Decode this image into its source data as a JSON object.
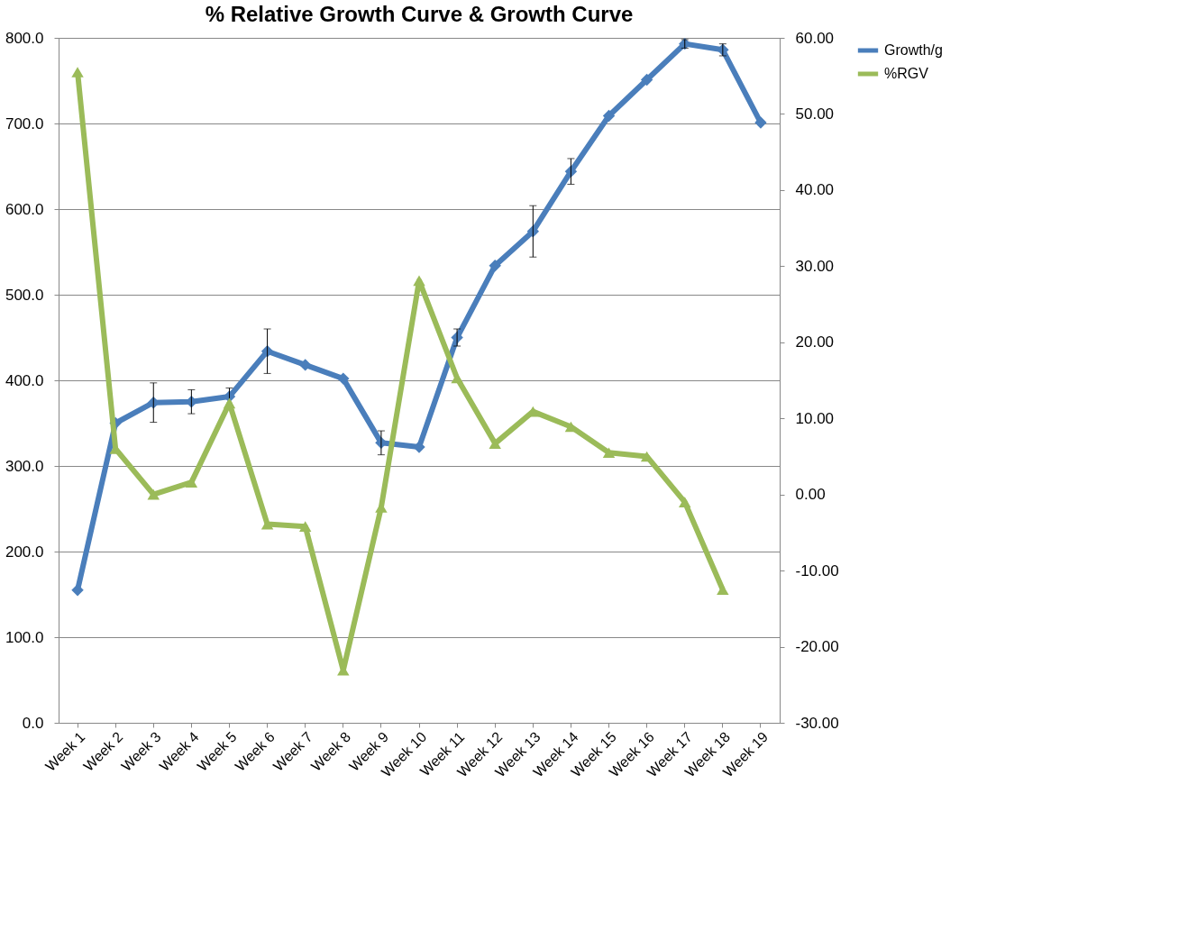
{
  "chart_data": {
    "type": "line",
    "title": "% Relative Growth Curve & Growth Curve",
    "categories": [
      "Week 1",
      "Week 2",
      "Week 3",
      "Week 4",
      "Week 5",
      "Week 6",
      "Week 7",
      "Week 8",
      "Week 9",
      "Week 10",
      "Week 11",
      "Week 12",
      "Week 13",
      "Week 14",
      "Week 15",
      "Week 16",
      "Week 17",
      "Week 18",
      "Week 19"
    ],
    "series": [
      {
        "name": "Growth/g",
        "color": "#4a7ebb",
        "marker": "diamond",
        "values": [
          155,
          350,
          374,
          375,
          381,
          434,
          418,
          402,
          327,
          322,
          450,
          534,
          574,
          644,
          709,
          751,
          793,
          786,
          701
        ],
        "errors": [
          null,
          null,
          23,
          14,
          10,
          26,
          null,
          null,
          14,
          null,
          10,
          null,
          30,
          15,
          null,
          null,
          5,
          7,
          null
        ]
      },
      {
        "name": "%RGV",
        "color": "#9bbb59",
        "marker": "triangle",
        "axis": "y2",
        "values": [
          55.5,
          6.0,
          0.0,
          1.6,
          12.0,
          -3.9,
          -4.2,
          -23.1,
          -1.7,
          28.1,
          15.3,
          6.7,
          10.9,
          8.9,
          5.5,
          5.0,
          -1.0,
          -12.5,
          null
        ]
      }
    ],
    "ylim": [
      0,
      800
    ],
    "yticks": [
      {
        "value": 0,
        "label": "0.0"
      },
      {
        "value": 100,
        "label": "100.0"
      },
      {
        "value": 200,
        "label": "200.0"
      },
      {
        "value": 300,
        "label": "300.0"
      },
      {
        "value": 400,
        "label": "400.0"
      },
      {
        "value": 500,
        "label": "500.0"
      },
      {
        "value": 600,
        "label": "600.0"
      },
      {
        "value": 700,
        "label": "700.0"
      },
      {
        "value": 800,
        "label": "800.0"
      }
    ],
    "y2lim": [
      -30,
      60
    ],
    "y2ticks": [
      {
        "value": -30,
        "label": "-30.00"
      },
      {
        "value": -20,
        "label": "-20.00"
      },
      {
        "value": -10,
        "label": "-10.00"
      },
      {
        "value": 0,
        "label": "0.00"
      },
      {
        "value": 10,
        "label": "10.00"
      },
      {
        "value": 20,
        "label": "20.00"
      },
      {
        "value": 30,
        "label": "30.00"
      },
      {
        "value": 40,
        "label": "40.00"
      },
      {
        "value": 50,
        "label": "50.00"
      },
      {
        "value": 60,
        "label": "60.00"
      }
    ],
    "grid": "y",
    "legend": "right",
    "line_style": "solid"
  }
}
